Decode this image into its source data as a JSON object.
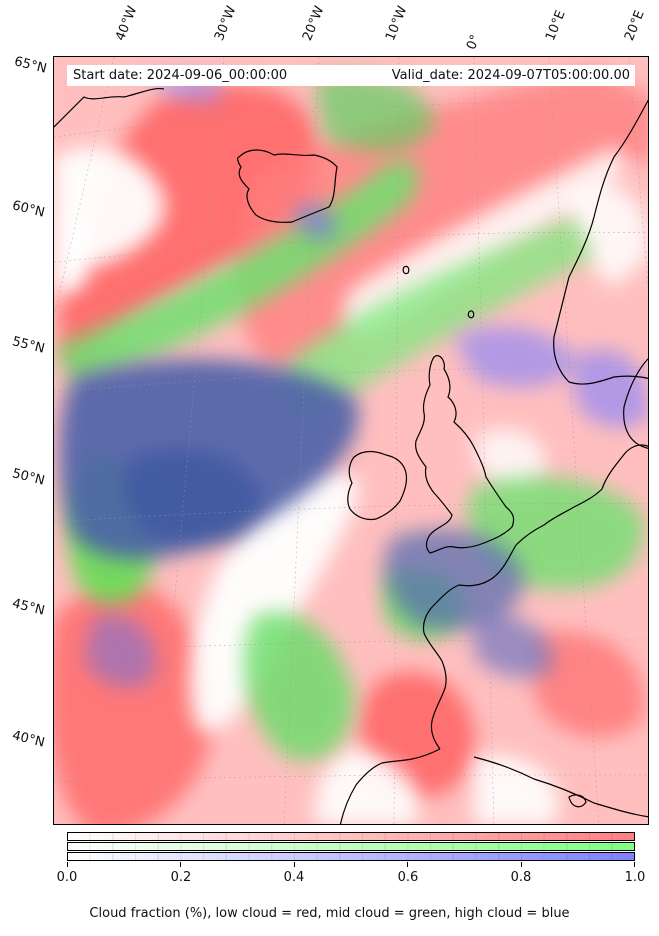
{
  "info": {
    "start_date": "Start date: 2024-09-06_00:00:00",
    "valid_date": "Valid_date: 2024-09-07T05:00:00.00"
  },
  "axes": {
    "lon_labels": [
      "40°W",
      "30°W",
      "20°W",
      "10°W",
      "0°",
      "10°E",
      "20°E"
    ],
    "lat_labels": [
      "65°N",
      "60°N",
      "55°N",
      "50°N",
      "45°N",
      "40°N"
    ]
  },
  "colorbar": {
    "ticks": [
      "0.0",
      "0.2",
      "0.4",
      "0.6",
      "0.8",
      "1.0"
    ],
    "colors": {
      "low": "#ff7f7f",
      "mid": "#7fff7f",
      "high": "#7f7fff"
    },
    "caption": "Cloud fraction (%), low cloud = red, mid cloud = green, high cloud = blue"
  }
}
